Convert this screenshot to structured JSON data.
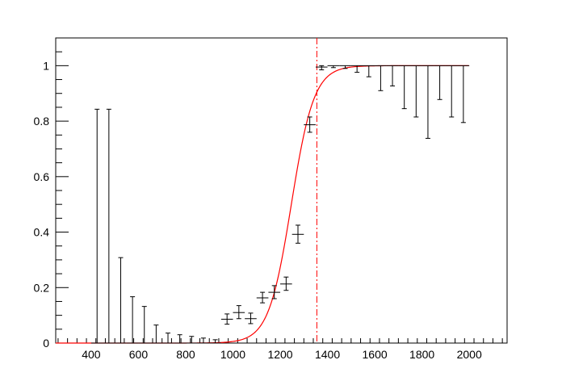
{
  "chart_data": {
    "type": "scatter",
    "title": "",
    "xlabel": "",
    "ylabel": "",
    "xlim": [
      250,
      2160
    ],
    "ylim": [
      0,
      1.1
    ],
    "grid": false,
    "x_ticks": [
      400,
      600,
      800,
      1000,
      1200,
      1400,
      1600,
      1800,
      2000
    ],
    "y_ticks": [
      0,
      0.2,
      0.4,
      0.6,
      0.8,
      1
    ],
    "x_tick_labels": [
      "400",
      "600",
      "800",
      "1000",
      "1200",
      "1400",
      "1600",
      "1800",
      "2000"
    ],
    "y_tick_labels": [
      "0",
      "0.2",
      "0.4",
      "0.6",
      "0.8",
      "1"
    ],
    "bin_half_width": 25,
    "points": [
      {
        "x": 425,
        "y": 0,
        "lo": 0,
        "hi": 0.843
      },
      {
        "x": 475,
        "y": 0,
        "lo": 0,
        "hi": 0.843
      },
      {
        "x": 525,
        "y": 0,
        "lo": 0,
        "hi": 0.308
      },
      {
        "x": 575,
        "y": 0,
        "lo": 0,
        "hi": 0.167
      },
      {
        "x": 625,
        "y": 0,
        "lo": 0,
        "hi": 0.132
      },
      {
        "x": 675,
        "y": 0,
        "lo": 0,
        "hi": 0.065
      },
      {
        "x": 725,
        "y": 0,
        "lo": 0,
        "hi": 0.036
      },
      {
        "x": 775,
        "y": 0,
        "lo": 0,
        "hi": 0.03
      },
      {
        "x": 825,
        "y": 0,
        "lo": 0,
        "hi": 0.024
      },
      {
        "x": 875,
        "y": 0,
        "lo": 0,
        "hi": 0.018
      },
      {
        "x": 925,
        "y": 0,
        "lo": 0,
        "hi": 0.012
      },
      {
        "x": 975,
        "y": 0.086,
        "lo": 0.068,
        "hi": 0.105
      },
      {
        "x": 1025,
        "y": 0.11,
        "lo": 0.088,
        "hi": 0.135
      },
      {
        "x": 1075,
        "y": 0.088,
        "lo": 0.07,
        "hi": 0.108
      },
      {
        "x": 1125,
        "y": 0.163,
        "lo": 0.145,
        "hi": 0.183
      },
      {
        "x": 1175,
        "y": 0.183,
        "lo": 0.16,
        "hi": 0.207
      },
      {
        "x": 1225,
        "y": 0.213,
        "lo": 0.19,
        "hi": 0.238
      },
      {
        "x": 1275,
        "y": 0.392,
        "lo": 0.36,
        "hi": 0.425
      },
      {
        "x": 1325,
        "y": 0.787,
        "lo": 0.76,
        "hi": 0.815
      },
      {
        "x": 1375,
        "y": 0.995,
        "lo": 0.985,
        "hi": 1.0
      },
      {
        "x": 1425,
        "y": 1.0,
        "lo": 0.993,
        "hi": 1.0
      },
      {
        "x": 1475,
        "y": 1.0,
        "lo": 0.99,
        "hi": 1.0
      },
      {
        "x": 1525,
        "y": 1.0,
        "lo": 0.976,
        "hi": 1.0
      },
      {
        "x": 1575,
        "y": 1.0,
        "lo": 0.96,
        "hi": 1.0
      },
      {
        "x": 1625,
        "y": 1.0,
        "lo": 0.91,
        "hi": 1.0
      },
      {
        "x": 1675,
        "y": 1.0,
        "lo": 0.927,
        "hi": 1.0
      },
      {
        "x": 1725,
        "y": 1.0,
        "lo": 0.845,
        "hi": 1.0
      },
      {
        "x": 1775,
        "y": 1.0,
        "lo": 0.815,
        "hi": 1.0
      },
      {
        "x": 1825,
        "y": 1.0,
        "lo": 0.738,
        "hi": 1.0
      },
      {
        "x": 1875,
        "y": 1.0,
        "lo": 0.878,
        "hi": 1.0
      },
      {
        "x": 1925,
        "y": 1.0,
        "lo": 0.815,
        "hi": 1.0
      },
      {
        "x": 1975,
        "y": 1.0,
        "lo": 0.795,
        "hi": 1.0
      }
    ],
    "fit_curve": {
      "type": "sigmoid",
      "color": "#ff0000",
      "x_range": [
        250,
        2000
      ],
      "midpoint": 1247,
      "width": 48
    },
    "threshold_line": {
      "x": 1355,
      "color": "#ff0000",
      "style": "dash-dot"
    },
    "colors": {
      "points": "#000000",
      "fit": "#ff0000",
      "frame": "#000000"
    }
  }
}
